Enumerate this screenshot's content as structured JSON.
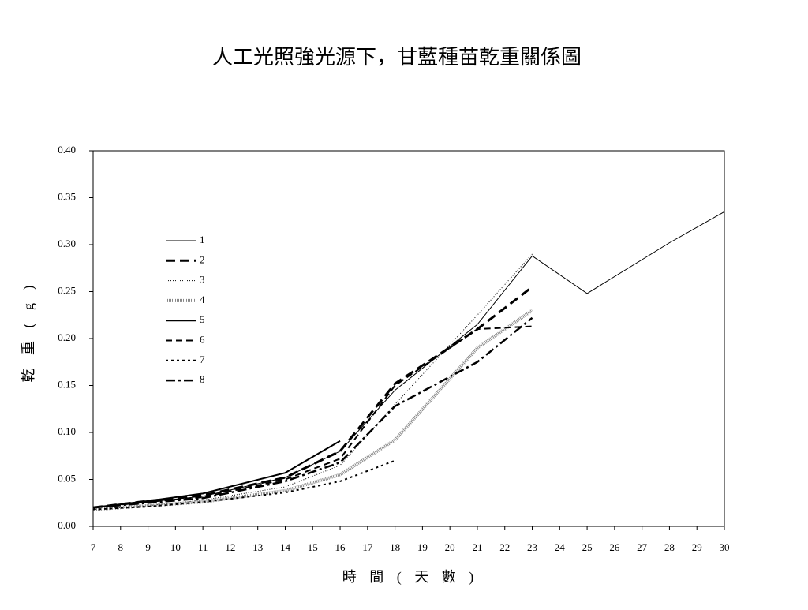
{
  "chart_data": {
    "type": "line",
    "title": "人工光照強光源下，甘藍種苗乾重關係圖",
    "x_label": "時 間 ( 天 數 )",
    "y_label": "乾 重 ( g )",
    "x": [
      7,
      9,
      11,
      14,
      16,
      18,
      21,
      23,
      25,
      28,
      30
    ],
    "xlim": [
      7,
      30
    ],
    "xticks": [
      7,
      8,
      9,
      10,
      11,
      12,
      13,
      14,
      15,
      16,
      17,
      18,
      19,
      20,
      21,
      22,
      23,
      24,
      25,
      26,
      27,
      28,
      29,
      30
    ],
    "ylim": [
      0,
      0.4
    ],
    "yticks": [
      {
        "value": 0,
        "label": "0.00"
      },
      {
        "value": 0.05,
        "label": "0.05"
      },
      {
        "value": 0.1,
        "label": "0.10"
      },
      {
        "value": 0.15,
        "label": "0.15"
      },
      {
        "value": 0.2,
        "label": "0.20"
      },
      {
        "value": 0.25,
        "label": "0.25"
      },
      {
        "value": 0.3,
        "label": "0.30"
      },
      {
        "value": 0.35,
        "label": "0.35"
      },
      {
        "value": 0.4,
        "label": "0.40"
      }
    ],
    "grid": false,
    "series": [
      {
        "name": "1",
        "color": "#000000",
        "style": "thin",
        "values": [
          0.02,
          0.026,
          0.032,
          0.052,
          0.08,
          0.145,
          0.215,
          0.288,
          0.248,
          0.302,
          0.335
        ]
      },
      {
        "name": "2",
        "color": "#000000",
        "style": "long-dash",
        "values": [
          0.02,
          0.027,
          0.033,
          0.052,
          0.08,
          0.152,
          0.21,
          0.255,
          null,
          null,
          null
        ]
      },
      {
        "name": "3",
        "color": "#000000",
        "style": "dotted",
        "values": [
          0.018,
          0.022,
          0.028,
          0.042,
          0.065,
          0.13,
          0.225,
          0.29,
          null,
          null,
          null
        ]
      },
      {
        "name": "4",
        "color": "#888888",
        "style": "thick-dotted",
        "values": [
          0.018,
          0.022,
          0.026,
          0.038,
          0.055,
          0.092,
          0.19,
          0.23,
          null,
          null,
          null
        ]
      },
      {
        "name": "5",
        "color": "#000000",
        "style": "solid",
        "values": [
          0.02,
          0.027,
          0.035,
          0.057,
          0.091,
          null,
          null,
          null,
          null,
          null,
          null
        ]
      },
      {
        "name": "6",
        "color": "#000000",
        "style": "dash",
        "values": [
          0.02,
          0.026,
          0.031,
          0.05,
          0.072,
          0.15,
          0.21,
          0.213,
          null,
          null,
          null
        ]
      },
      {
        "name": "7",
        "color": "#000000",
        "style": "short-dash",
        "values": [
          0.018,
          0.021,
          0.026,
          0.036,
          0.048,
          0.07,
          null,
          null,
          null,
          null,
          null
        ]
      },
      {
        "name": "8",
        "color": "#000000",
        "style": "dash-dot",
        "values": [
          0.02,
          0.025,
          0.03,
          0.048,
          0.068,
          0.128,
          0.175,
          0.222,
          null,
          null,
          null
        ]
      }
    ]
  }
}
